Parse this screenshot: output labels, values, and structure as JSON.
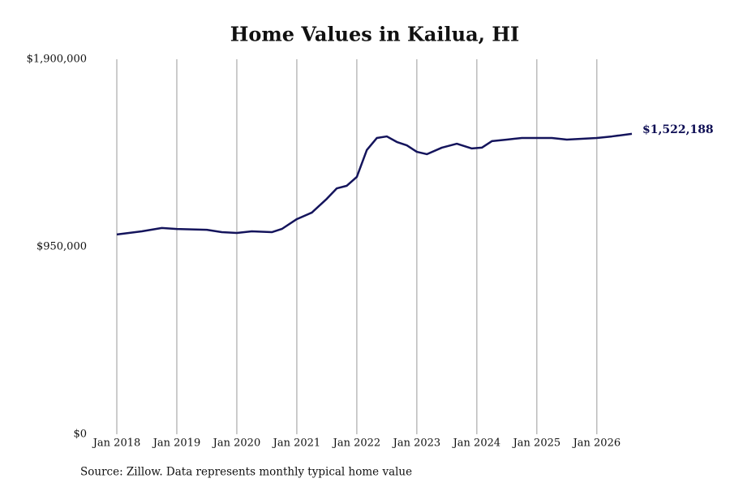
{
  "chart_data": {
    "type": "line",
    "title": "Home Values in Kailua, HI",
    "source": "Source: Zillow. Data represents monthly typical home value",
    "x": [
      "2018-01",
      "2018-06",
      "2018-10",
      "2019-01",
      "2019-07",
      "2019-10",
      "2020-01",
      "2020-04",
      "2020-08",
      "2020-10",
      "2021-01",
      "2021-04",
      "2021-07",
      "2021-09",
      "2021-11",
      "2022-01",
      "2022-03",
      "2022-05",
      "2022-07",
      "2022-09",
      "2022-11",
      "2023-01",
      "2023-03",
      "2023-06",
      "2023-09",
      "2023-12",
      "2024-02",
      "2024-04",
      "2024-07",
      "2024-10",
      "2025-01",
      "2025-04",
      "2025-07",
      "2025-10",
      "2026-01",
      "2026-04",
      "2026-08"
    ],
    "series": [
      {
        "name": "Typical home value",
        "color": "#14145c",
        "values": [
          1012000,
          1028000,
          1045000,
          1040000,
          1036000,
          1024000,
          1020000,
          1028000,
          1024000,
          1040000,
          1090000,
          1123000,
          1193000,
          1246000,
          1259000,
          1304000,
          1440000,
          1501000,
          1509000,
          1481000,
          1464000,
          1431000,
          1419000,
          1452000,
          1472000,
          1448000,
          1452000,
          1485000,
          1493000,
          1501000,
          1501000,
          1501000,
          1493000,
          1497000,
          1501000,
          1509000,
          1522188
        ],
        "value_labels": [
          null,
          null,
          null,
          null,
          null,
          null,
          null,
          null,
          null,
          null,
          null,
          null,
          null,
          null,
          null,
          null,
          null,
          null,
          null,
          null,
          null,
          null,
          null,
          null,
          null,
          null,
          null,
          null,
          null,
          null,
          null,
          null,
          null,
          null,
          null,
          null,
          "$1,522,188"
        ]
      }
    ],
    "xlim": [
      "2018-01",
      "2026-08"
    ],
    "xticks": [
      {
        "value": "2018-01",
        "label": "Jan 2018"
      },
      {
        "value": "2019-01",
        "label": "Jan 2019"
      },
      {
        "value": "2020-01",
        "label": "Jan 2020"
      },
      {
        "value": "2021-01",
        "label": "Jan 2021"
      },
      {
        "value": "2022-01",
        "label": "Jan 2022"
      },
      {
        "value": "2023-01",
        "label": "Jan 2023"
      },
      {
        "value": "2024-01",
        "label": "Jan 2024"
      },
      {
        "value": "2025-01",
        "label": "Jan 2025"
      },
      {
        "value": "2026-01",
        "label": "Jan 2026"
      }
    ],
    "ylim": [
      0,
      1900000
    ],
    "yticks": [
      {
        "value": 0,
        "label": "$0"
      },
      {
        "value": 950000,
        "label": "$950,000"
      },
      {
        "value": 1900000,
        "label": "$1,900,000"
      }
    ],
    "grid": "x"
  }
}
